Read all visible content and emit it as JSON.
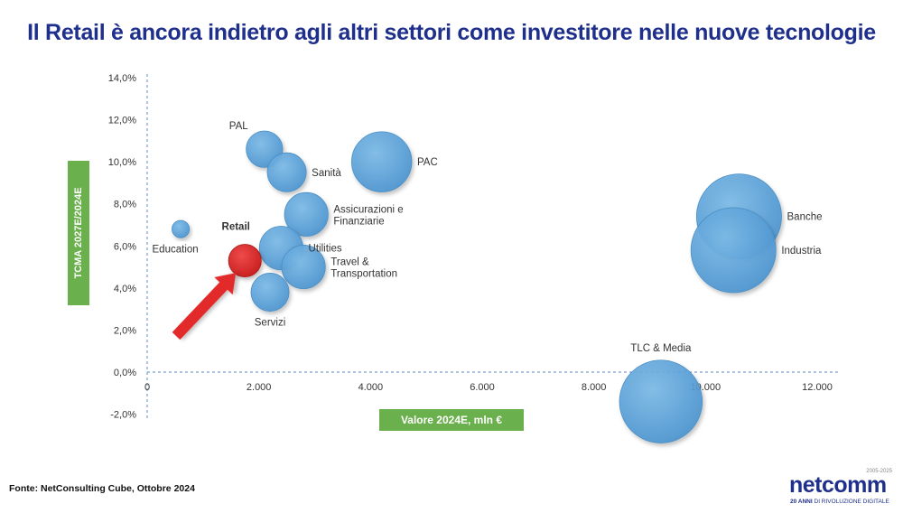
{
  "title": "Il Retail è ancora indietro agli altri settori come investitore nelle nuove tecnologie",
  "source": "Fonte: NetConsulting Cube, Ottobre 2024",
  "logo": {
    "word": "netcomm",
    "years": "2005-2025",
    "tagline_bold": "20 ANNI",
    "tagline_rest": " DI RIVOLUZIONE DIGITALE"
  },
  "colors": {
    "bubble": "#5aa6dc",
    "bubble_stroke": "#4a8fc4",
    "highlight": "#e03030",
    "title": "#1f2f8c",
    "label_box": "#6ab04c"
  },
  "chart_data": {
    "type": "scatter",
    "subtype": "bubble",
    "xlabel": "Valore 2024E, mln €",
    "ylabel": "TCMA 2027E/2024E",
    "xlim": [
      0,
      12000
    ],
    "ylim": [
      -2,
      14
    ],
    "x_ticks": [
      "0",
      "2.000",
      "4.000",
      "6.000",
      "8.000",
      "10.000",
      "12.000"
    ],
    "y_ticks": [
      "-2,0%",
      "0,0%",
      "2,0%",
      "4,0%",
      "6,0%",
      "8,0%",
      "10,0%",
      "12,0%",
      "14,0%"
    ],
    "grid": false,
    "points": [
      {
        "name": "PAL",
        "x": 2100,
        "y": 10.6,
        "size": 350,
        "label_pos": "top-left"
      },
      {
        "name": "Sanità",
        "x": 2500,
        "y": 9.5,
        "size": 400,
        "label_pos": "right"
      },
      {
        "name": "PAC",
        "x": 4200,
        "y": 10.0,
        "size": 950,
        "label_pos": "right"
      },
      {
        "name": "Assicurazioni e Finanziarie",
        "x": 2850,
        "y": 7.5,
        "size": 500,
        "label_pos": "right"
      },
      {
        "name": "Education",
        "x": 600,
        "y": 6.8,
        "size": 80,
        "label_pos": "bottom-left"
      },
      {
        "name": "Utilities",
        "x": 2400,
        "y": 5.9,
        "size": 500,
        "label_pos": "right"
      },
      {
        "name": "Retail",
        "x": 1750,
        "y": 5.3,
        "size": 280,
        "label_pos": "top",
        "highlight": true
      },
      {
        "name": "Travel & Transportation",
        "x": 2800,
        "y": 5.0,
        "size": 500,
        "label_pos": "right"
      },
      {
        "name": "Servizi",
        "x": 2200,
        "y": 3.8,
        "size": 380,
        "label_pos": "bottom"
      },
      {
        "name": "Banche",
        "x": 10600,
        "y": 7.4,
        "size": 1900,
        "label_pos": "right"
      },
      {
        "name": "Industria",
        "x": 10500,
        "y": 5.8,
        "size": 1900,
        "label_pos": "right"
      },
      {
        "name": "TLC & Media",
        "x": 9200,
        "y": -1.4,
        "size": 1800,
        "label_pos": "top"
      }
    ]
  }
}
